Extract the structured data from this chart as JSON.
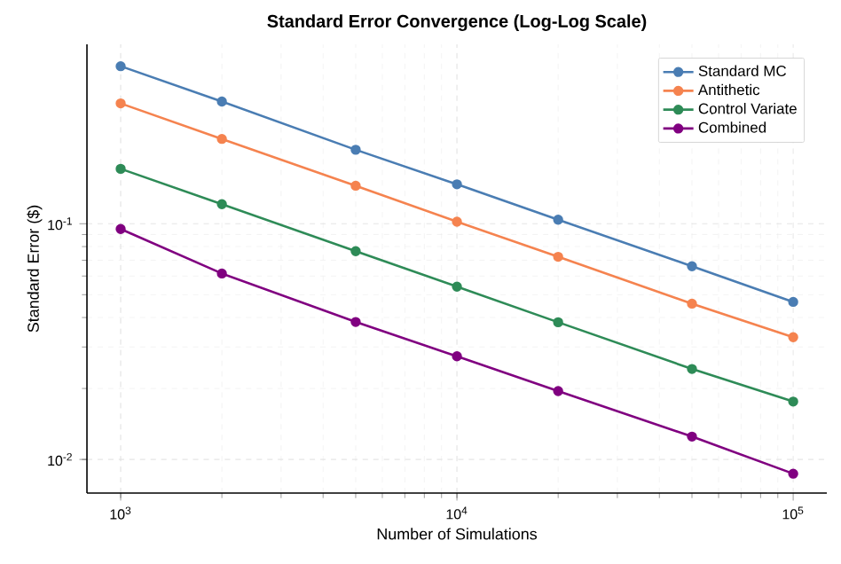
{
  "chart_data": {
    "type": "line",
    "title": "Standard Error Convergence (Log-Log Scale)",
    "xlabel": "Number of Simulations",
    "ylabel": "Standard Error ($)",
    "x": [
      1000,
      2000,
      5000,
      10000,
      20000,
      50000,
      100000
    ],
    "series": [
      {
        "name": "Standard MC",
        "color": "#4a7db3",
        "values": [
          0.466,
          0.33,
          0.206,
          0.147,
          0.104,
          0.066,
          0.0466
        ]
      },
      {
        "name": "Antithetic",
        "color": "#f5834f",
        "values": [
          0.324,
          0.229,
          0.145,
          0.102,
          0.0724,
          0.0458,
          0.033
        ]
      },
      {
        "name": "Control Variate",
        "color": "#2e8b57",
        "values": [
          0.171,
          0.121,
          0.0765,
          0.0541,
          0.0382,
          0.0242,
          0.0176
        ]
      },
      {
        "name": "Combined",
        "color": "#800080",
        "values": [
          0.095,
          0.0615,
          0.0383,
          0.0274,
          0.0195,
          0.0125,
          0.0087
        ]
      }
    ],
    "xlim": [
      794,
      125900
    ],
    "ylim": [
      0.0072,
      0.577
    ],
    "xticks": [
      {
        "value": 1000,
        "label": "10$^{3}$"
      },
      {
        "value": 10000,
        "label": "10$^{4}$"
      },
      {
        "value": 100000,
        "label": "10$^{5}$"
      }
    ],
    "yticks": [
      {
        "value": 0.01,
        "label": "10$^{-2}$"
      },
      {
        "value": 0.1,
        "label": "10$^{-1}$"
      }
    ],
    "log": "xy",
    "grid": true,
    "legend": "top right",
    "marker": "circle",
    "line_style": "solid"
  }
}
